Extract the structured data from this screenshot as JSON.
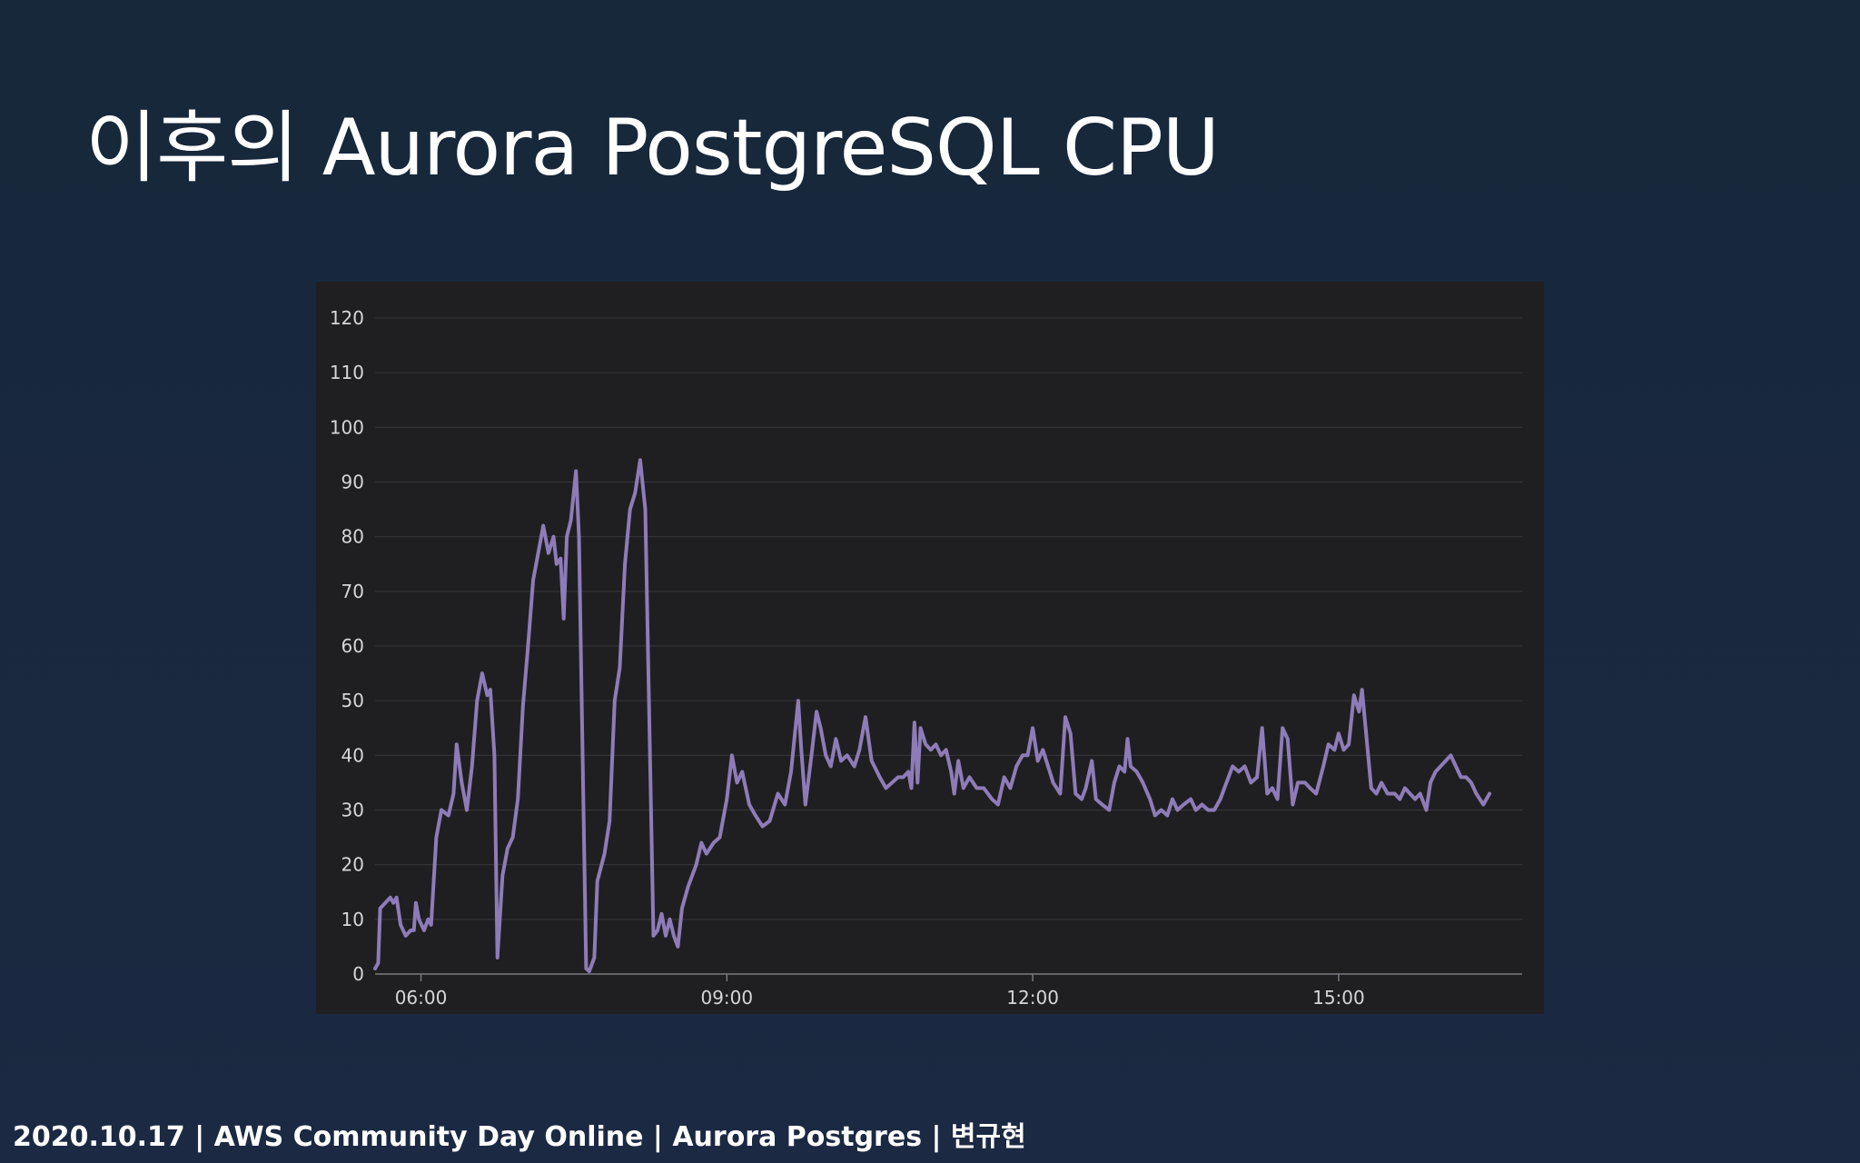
{
  "slide": {
    "title": "이후의 Aurora PostgreSQL CPU",
    "footer": "2020.10.17 | AWS Community Day Online | Aurora Postgres | 변규현"
  },
  "chart_data": {
    "type": "line",
    "title": "",
    "xlabel": "",
    "ylabel": "",
    "ylim": [
      0,
      120
    ],
    "y_ticks": [
      0,
      10,
      20,
      30,
      40,
      50,
      60,
      70,
      80,
      90,
      100,
      110,
      120
    ],
    "x_ticks": [
      "06:00",
      "09:00",
      "12:00",
      "15:00"
    ],
    "x_range_hours": [
      5.55,
      16.8
    ],
    "grid": true,
    "colors": {
      "line": "#8e7cb8",
      "grid": "#37373b",
      "axis": "#7a7a80",
      "tick_label": "#d6d6d6",
      "panel": "#1f1f21"
    },
    "series": [
      {
        "name": "",
        "points": [
          [
            5.55,
            1
          ],
          [
            5.58,
            2
          ],
          [
            5.6,
            12
          ],
          [
            5.65,
            13
          ],
          [
            5.7,
            14
          ],
          [
            5.73,
            13
          ],
          [
            5.76,
            14
          ],
          [
            5.8,
            9
          ],
          [
            5.85,
            7
          ],
          [
            5.9,
            8
          ],
          [
            5.93,
            8
          ],
          [
            5.95,
            13
          ],
          [
            5.98,
            10
          ],
          [
            6.03,
            8
          ],
          [
            6.07,
            10
          ],
          [
            6.1,
            9
          ],
          [
            6.15,
            25
          ],
          [
            6.2,
            30
          ],
          [
            6.27,
            29
          ],
          [
            6.32,
            33
          ],
          [
            6.35,
            42
          ],
          [
            6.4,
            35
          ],
          [
            6.45,
            30
          ],
          [
            6.5,
            38
          ],
          [
            6.55,
            50
          ],
          [
            6.6,
            55
          ],
          [
            6.65,
            51
          ],
          [
            6.68,
            52
          ],
          [
            6.72,
            40
          ],
          [
            6.75,
            3
          ],
          [
            6.8,
            18
          ],
          [
            6.85,
            23
          ],
          [
            6.9,
            25
          ],
          [
            6.95,
            32
          ],
          [
            7.0,
            49
          ],
          [
            7.05,
            60
          ],
          [
            7.1,
            72
          ],
          [
            7.15,
            77
          ],
          [
            7.2,
            82
          ],
          [
            7.25,
            77
          ],
          [
            7.3,
            80
          ],
          [
            7.33,
            75
          ],
          [
            7.37,
            76
          ],
          [
            7.4,
            65
          ],
          [
            7.43,
            80
          ],
          [
            7.47,
            83
          ],
          [
            7.52,
            92
          ],
          [
            7.55,
            80
          ],
          [
            7.62,
            1
          ],
          [
            7.65,
            0.5
          ],
          [
            7.7,
            3
          ],
          [
            7.73,
            17
          ],
          [
            7.8,
            22
          ],
          [
            7.85,
            28
          ],
          [
            7.9,
            50
          ],
          [
            7.95,
            56
          ],
          [
            8.0,
            75
          ],
          [
            8.05,
            85
          ],
          [
            8.1,
            88
          ],
          [
            8.15,
            94
          ],
          [
            8.2,
            85
          ],
          [
            8.28,
            7
          ],
          [
            8.32,
            8
          ],
          [
            8.36,
            11
          ],
          [
            8.4,
            7
          ],
          [
            8.44,
            10
          ],
          [
            8.48,
            7
          ],
          [
            8.52,
            5
          ],
          [
            8.56,
            12
          ],
          [
            8.62,
            16
          ],
          [
            8.7,
            20
          ],
          [
            8.75,
            24
          ],
          [
            8.8,
            22
          ],
          [
            8.87,
            24
          ],
          [
            8.93,
            25
          ],
          [
            9.0,
            32
          ],
          [
            9.05,
            40
          ],
          [
            9.1,
            35
          ],
          [
            9.15,
            37
          ],
          [
            9.22,
            31
          ],
          [
            9.28,
            29
          ],
          [
            9.35,
            27
          ],
          [
            9.42,
            28
          ],
          [
            9.5,
            33
          ],
          [
            9.57,
            31
          ],
          [
            9.63,
            37
          ],
          [
            9.7,
            50
          ],
          [
            9.73,
            41
          ],
          [
            9.77,
            31
          ],
          [
            9.83,
            40
          ],
          [
            9.88,
            48
          ],
          [
            9.92,
            45
          ],
          [
            9.97,
            40
          ],
          [
            10.02,
            38
          ],
          [
            10.07,
            43
          ],
          [
            10.12,
            39
          ],
          [
            10.18,
            40
          ],
          [
            10.25,
            38
          ],
          [
            10.3,
            41
          ],
          [
            10.36,
            47
          ],
          [
            10.42,
            39
          ],
          [
            10.5,
            36
          ],
          [
            10.56,
            34
          ],
          [
            10.62,
            35
          ],
          [
            10.68,
            36
          ],
          [
            10.73,
            36
          ],
          [
            10.78,
            37
          ],
          [
            10.81,
            34
          ],
          [
            10.84,
            46
          ],
          [
            10.87,
            35
          ],
          [
            10.9,
            45
          ],
          [
            10.95,
            42
          ],
          [
            11.0,
            41
          ],
          [
            11.05,
            42
          ],
          [
            11.1,
            40
          ],
          [
            11.15,
            41
          ],
          [
            11.2,
            37
          ],
          [
            11.23,
            33
          ],
          [
            11.27,
            39
          ],
          [
            11.32,
            34
          ],
          [
            11.38,
            36
          ],
          [
            11.45,
            34
          ],
          [
            11.52,
            34
          ],
          [
            11.6,
            32
          ],
          [
            11.66,
            31
          ],
          [
            11.72,
            36
          ],
          [
            11.78,
            34
          ],
          [
            11.84,
            38
          ],
          [
            11.9,
            40
          ],
          [
            11.95,
            40
          ],
          [
            12.0,
            45
          ],
          [
            12.05,
            39
          ],
          [
            12.1,
            41
          ],
          [
            12.15,
            38
          ],
          [
            12.2,
            35
          ],
          [
            12.27,
            33
          ],
          [
            12.32,
            47
          ],
          [
            12.37,
            44
          ],
          [
            12.42,
            33
          ],
          [
            12.48,
            32
          ],
          [
            12.52,
            34
          ],
          [
            12.58,
            39
          ],
          [
            12.62,
            32
          ],
          [
            12.68,
            31
          ],
          [
            12.75,
            30
          ],
          [
            12.8,
            35
          ],
          [
            12.85,
            38
          ],
          [
            12.9,
            37
          ],
          [
            12.93,
            43
          ],
          [
            12.96,
            38
          ],
          [
            13.02,
            37
          ],
          [
            13.08,
            35
          ],
          [
            13.15,
            32
          ],
          [
            13.2,
            29
          ],
          [
            13.26,
            30
          ],
          [
            13.32,
            29
          ],
          [
            13.37,
            32
          ],
          [
            13.42,
            30
          ],
          [
            13.48,
            31
          ],
          [
            13.55,
            32
          ],
          [
            13.6,
            30
          ],
          [
            13.66,
            31
          ],
          [
            13.72,
            30
          ],
          [
            13.78,
            30
          ],
          [
            13.84,
            32
          ],
          [
            13.9,
            35
          ],
          [
            13.96,
            38
          ],
          [
            14.02,
            37
          ],
          [
            14.08,
            38
          ],
          [
            14.14,
            35
          ],
          [
            14.2,
            36
          ],
          [
            14.25,
            45
          ],
          [
            14.3,
            33
          ],
          [
            14.35,
            34
          ],
          [
            14.4,
            32
          ],
          [
            14.45,
            45
          ],
          [
            14.5,
            43
          ],
          [
            14.55,
            31
          ],
          [
            14.6,
            35
          ],
          [
            14.67,
            35
          ],
          [
            14.72,
            34
          ],
          [
            14.78,
            33
          ],
          [
            14.85,
            38
          ],
          [
            14.9,
            42
          ],
          [
            14.96,
            41
          ],
          [
            15.0,
            44
          ],
          [
            15.05,
            41
          ],
          [
            15.1,
            42
          ],
          [
            15.15,
            51
          ],
          [
            15.2,
            48
          ],
          [
            15.23,
            52
          ],
          [
            15.27,
            44
          ],
          [
            15.32,
            34
          ],
          [
            15.37,
            33
          ],
          [
            15.42,
            35
          ],
          [
            15.48,
            33
          ],
          [
            15.55,
            33
          ],
          [
            15.6,
            32
          ],
          [
            15.65,
            34
          ],
          [
            15.7,
            33
          ],
          [
            15.75,
            32
          ],
          [
            15.8,
            33
          ],
          [
            15.86,
            30
          ],
          [
            15.9,
            35
          ],
          [
            15.95,
            37
          ],
          [
            16.0,
            38
          ],
          [
            16.05,
            39
          ],
          [
            16.1,
            40
          ],
          [
            16.15,
            38
          ],
          [
            16.2,
            36
          ],
          [
            16.25,
            36
          ],
          [
            16.3,
            35
          ],
          [
            16.35,
            33
          ],
          [
            16.42,
            31
          ],
          [
            16.48,
            33
          ]
        ]
      }
    ]
  }
}
